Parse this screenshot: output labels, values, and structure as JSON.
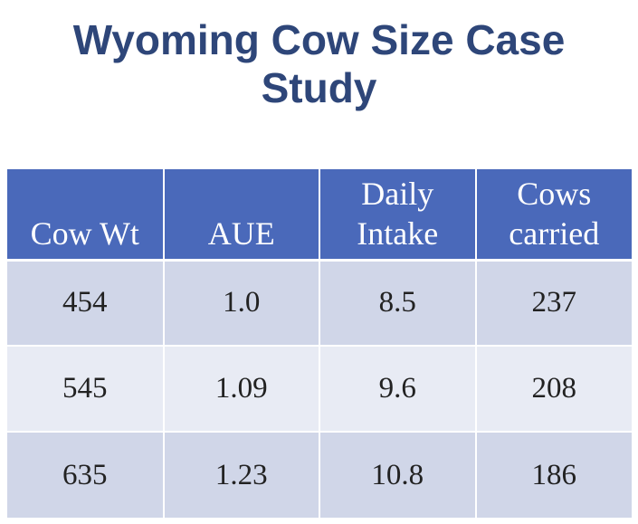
{
  "title": {
    "line1": "Wyoming Cow Size Case",
    "line2": "Study"
  },
  "table": {
    "headers": [
      {
        "line1": "",
        "line2": "Cow Wt"
      },
      {
        "line1": "",
        "line2": "AUE"
      },
      {
        "line1": "Daily",
        "line2": "Intake"
      },
      {
        "line1": "Cows",
        "line2": "carried"
      }
    ],
    "rows": [
      [
        "454",
        "1.0",
        "8.5",
        "237"
      ],
      [
        "545",
        "1.09",
        "9.6",
        "208"
      ],
      [
        "635",
        "1.23",
        "10.8",
        "186"
      ]
    ]
  },
  "colors": {
    "title": "#2e4679",
    "header_bg": "#4a69ba",
    "row_dark": "#d0d6e8",
    "row_light": "#e8ebf4"
  }
}
